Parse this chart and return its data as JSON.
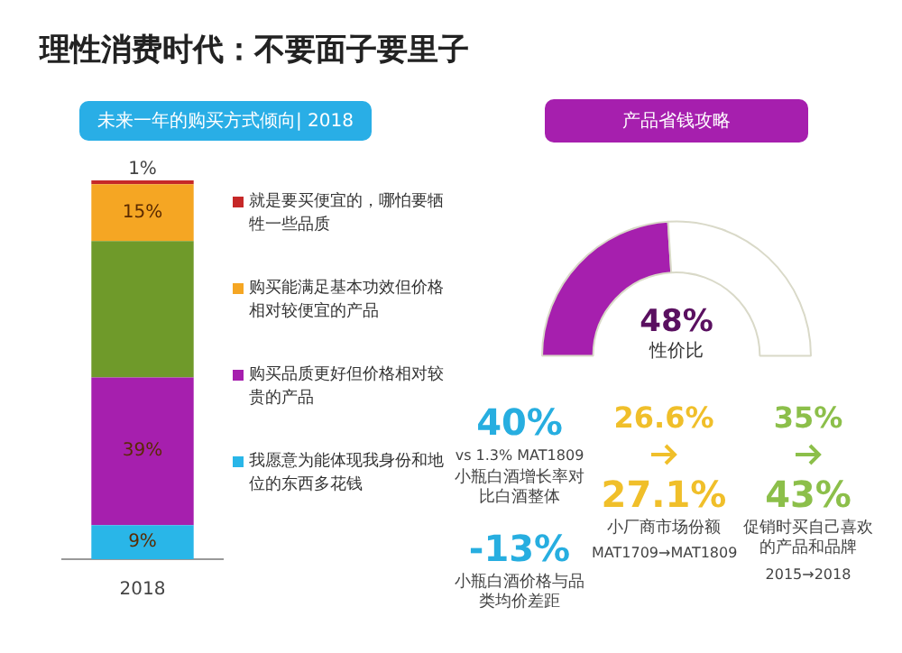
{
  "chart_data": [
    {
      "type": "bar",
      "title": "理性消费时代：不要面子要里子",
      "subtitle": "未来一年的购买方式倾向| 2018",
      "categories": [
        "2018"
      ],
      "stacked": true,
      "legend": "right",
      "series": [
        {
          "name": "我愿意为能体现我身份和地位的东西多花钱",
          "color": "#29b6e8",
          "values": [
            9
          ],
          "value_labels": [
            "9%"
          ]
        },
        {
          "name": "购买品质更好但价格相对较贵的产品",
          "color": "#a61fae",
          "values": [
            39
          ],
          "value_labels": [
            "39%"
          ]
        },
        {
          "color": "#6f9a2a",
          "values": [
            36
          ],
          "value_labels": [
            null
          ]
        },
        {
          "name": "购买能满足基本功效但价格相对较便宜的产品",
          "color": "#f5a623",
          "values": [
            15
          ],
          "value_labels": [
            "15%"
          ]
        },
        {
          "name": "就是要买便宜的，哪怕要牺牲一些品质",
          "color": "#c62828",
          "values": [
            1
          ],
          "value_labels": [
            "1%"
          ]
        }
      ]
    },
    {
      "type": "donut",
      "title": "产品省钱攻略",
      "categories": [
        "性价比",
        null
      ],
      "values": [
        48,
        52
      ],
      "colors": [
        "#a61fae",
        "#ffffff"
      ],
      "value_labels": [
        "48%",
        null
      ]
    },
    {
      "type": "other",
      "annotations": [
        "40%",
        "vs 1.3% MAT1809",
        "小瓶白酒增长率对比白酒整体",
        "-13%",
        "小瓶白酒价格与品类均价差距",
        "26.6%",
        "27.1%",
        "小厂商市场份额",
        "MAT1709→MAT1809",
        "35%",
        "43%",
        "促销时买自己喜欢的产品和品牌",
        "2015→2018"
      ]
    }
  ]
}
